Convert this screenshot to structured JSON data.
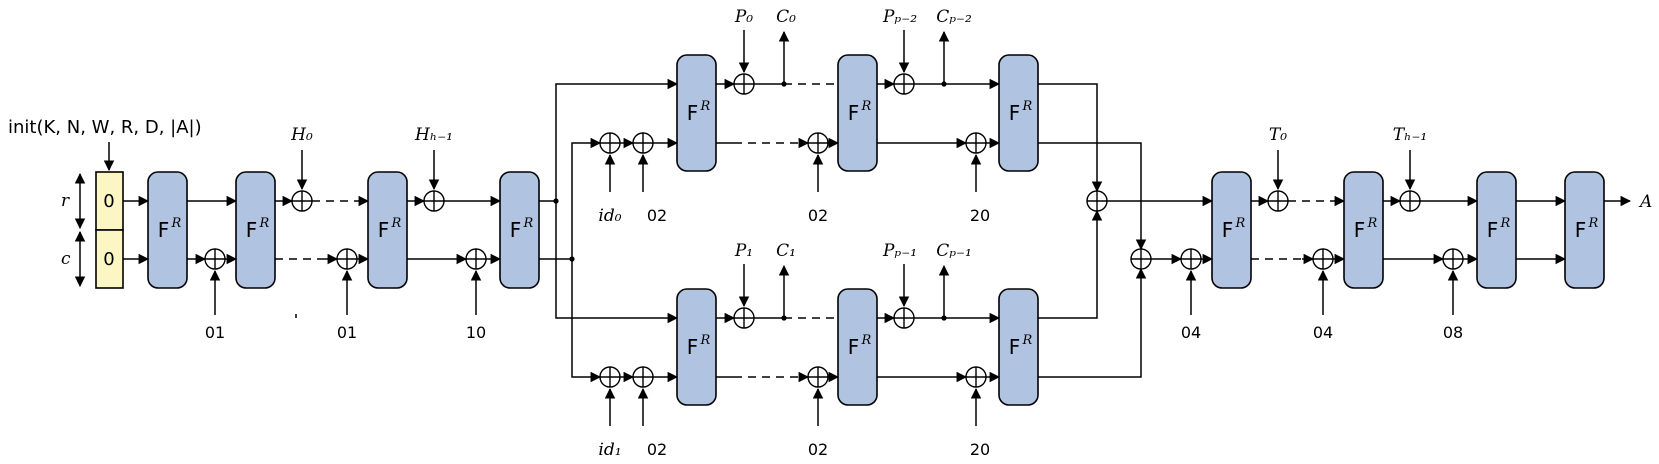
{
  "diagram": {
    "init_label": "init(K, N, W, R, D, |A|)",
    "state_labels": {
      "r": "r",
      "c": "c"
    },
    "initial_values": [
      "0",
      "0"
    ],
    "block": {
      "name": "F",
      "superscript": "R"
    },
    "header_inputs": [
      "H₀",
      "Hₕ₋₁"
    ],
    "domain_constants": {
      "header": [
        "01",
        "01",
        "10"
      ],
      "branch_top": [
        "02",
        "02",
        "20"
      ],
      "branch_bottom": [
        "02",
        "02",
        "20"
      ],
      "tag": [
        "04",
        "04",
        "08"
      ]
    },
    "branch_ids": [
      "id₀",
      "id₁"
    ],
    "branch_top_io": {
      "p0": "P₀",
      "c0": "C₀",
      "pp": "Pₚ₋₂",
      "cp": "Cₚ₋₂"
    },
    "branch_bottom_io": {
      "p1": "P₁",
      "c1": "C₁",
      "pp": "Pₚ₋₁",
      "cp": "Cₚ₋₁"
    },
    "tag_inputs": [
      "T₀",
      "Tₕ₋₁"
    ],
    "output": "A"
  }
}
